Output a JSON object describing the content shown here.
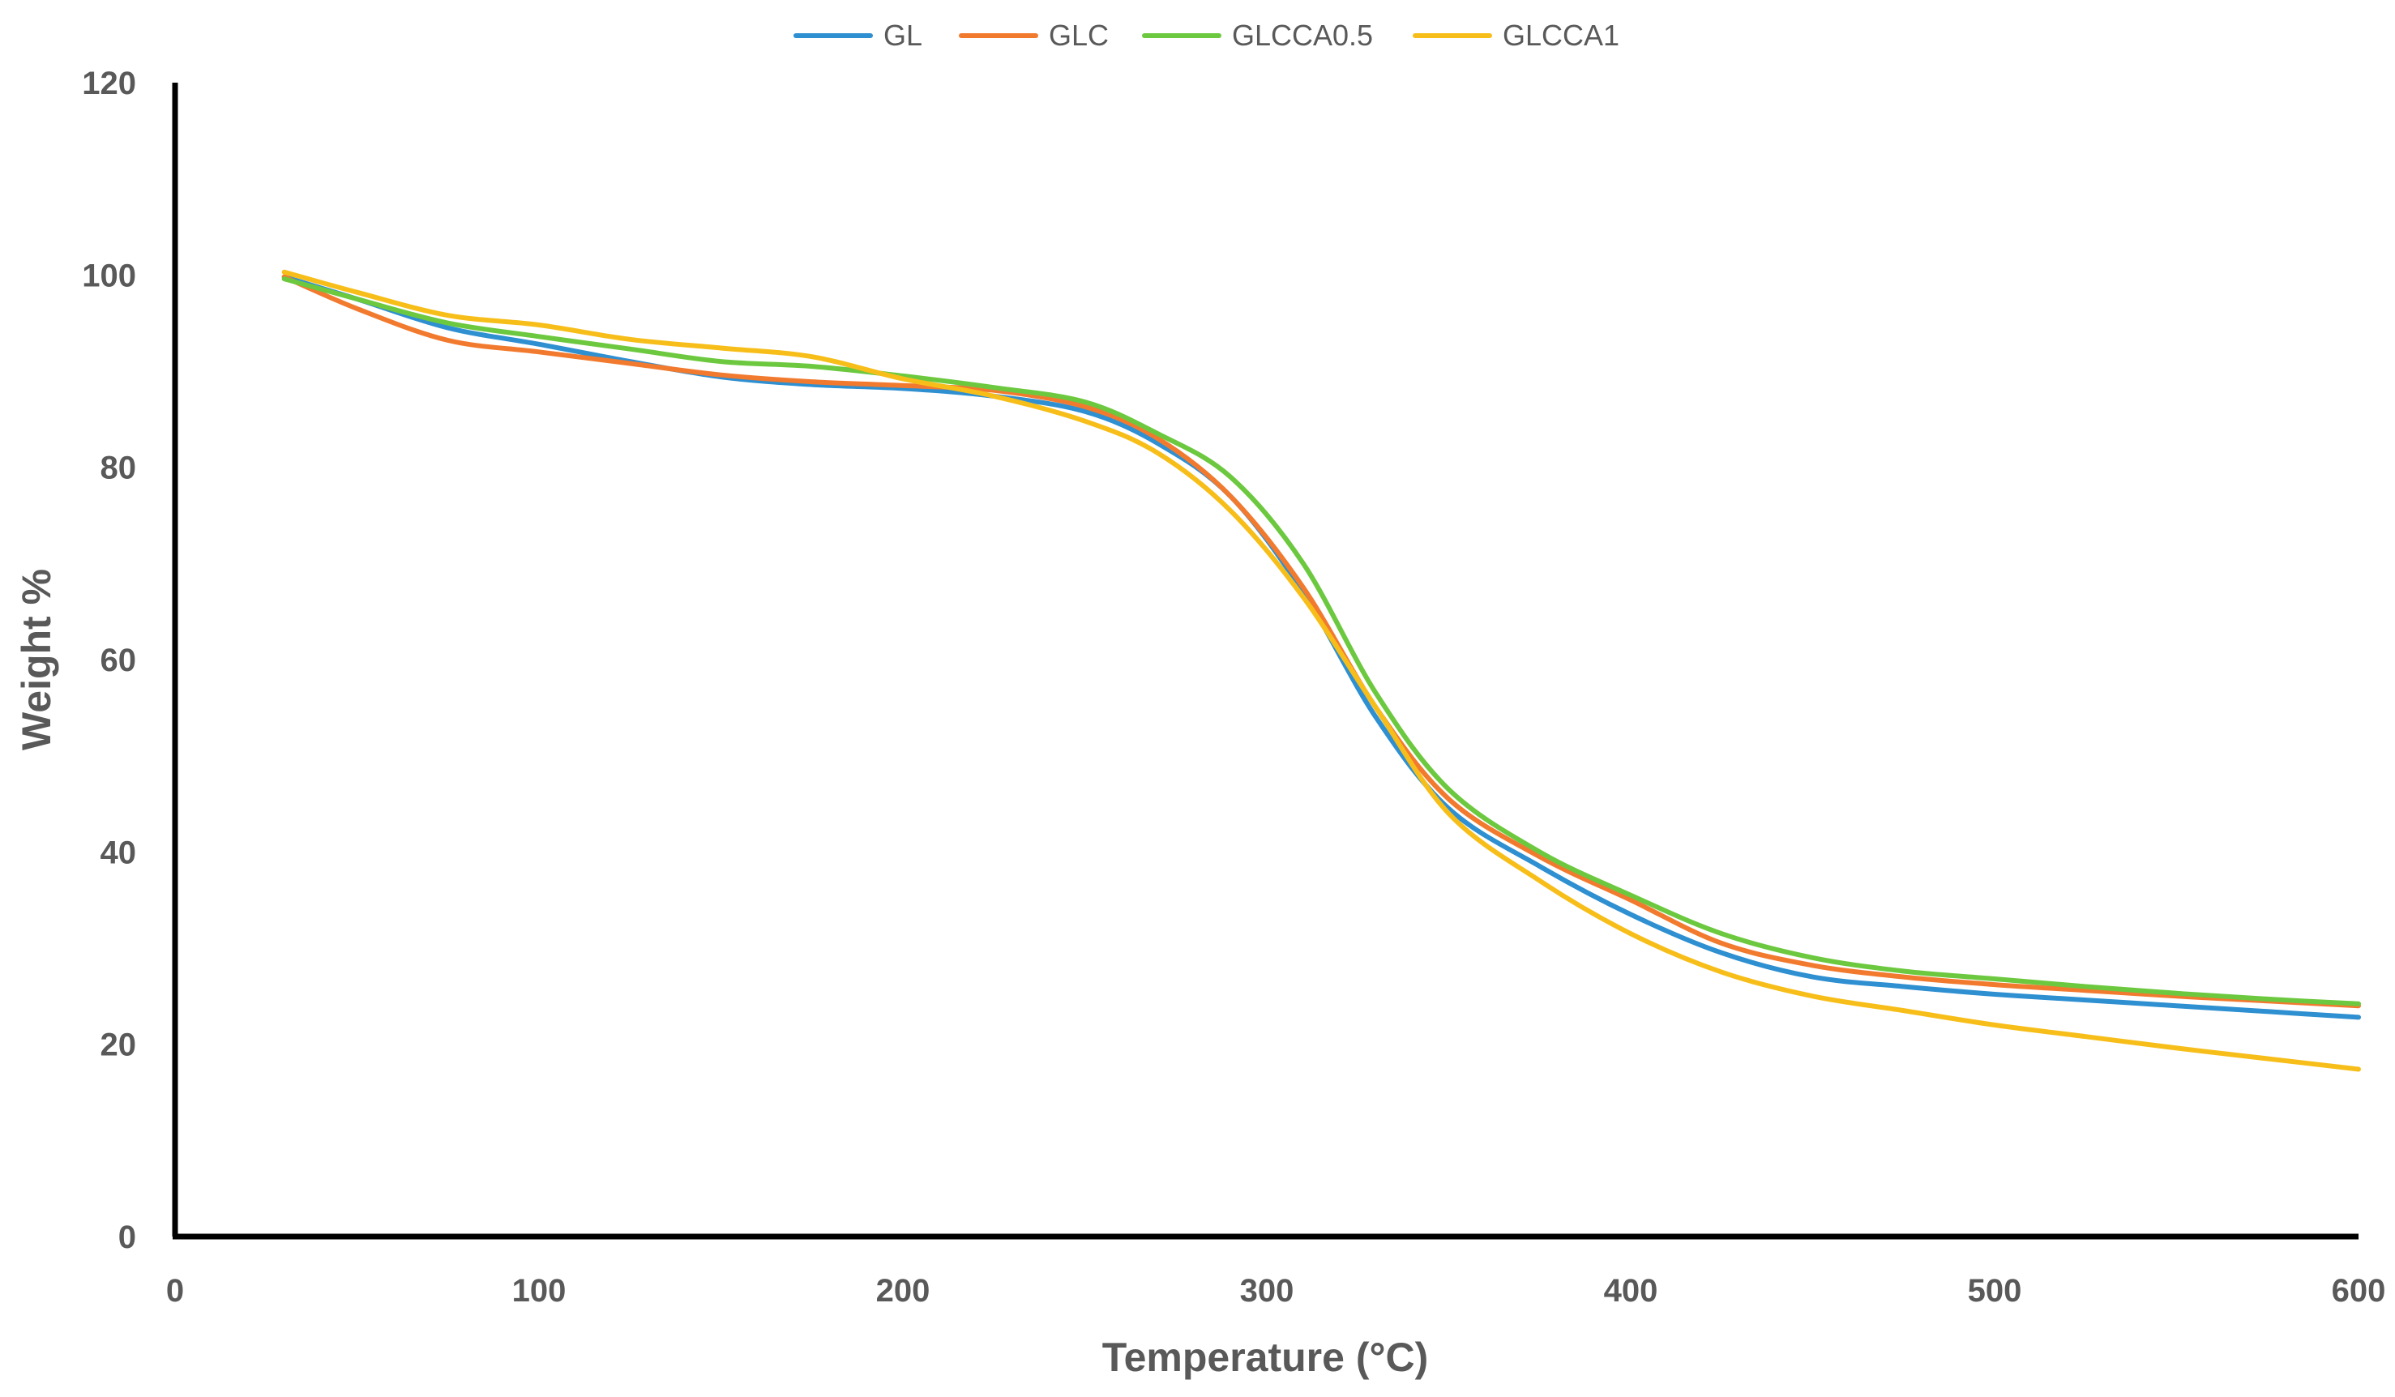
{
  "chart_data": {
    "type": "line",
    "title": "",
    "xlabel": "Temperature (°C)",
    "ylabel": "Weight %",
    "xlim": [
      0,
      600
    ],
    "ylim": [
      0,
      120
    ],
    "xticks": [
      "0",
      "100",
      "200",
      "300",
      "400",
      "500",
      "600"
    ],
    "yticks": [
      "0",
      "20",
      "40",
      "60",
      "80",
      "100",
      "120"
    ],
    "grid": false,
    "legend_position": "top-center",
    "series": [
      {
        "name": "GL",
        "color": "#2E8FD1",
        "x": [
          30,
          50,
          75,
          100,
          125,
          150,
          175,
          200,
          225,
          250,
          270,
          290,
          310,
          330,
          350,
          375,
          400,
          425,
          450,
          475,
          500,
          525,
          550,
          575,
          600
        ],
        "y": [
          99.8,
          97.5,
          94.5,
          92.8,
          91.0,
          89.4,
          88.6,
          88.2,
          87.4,
          85.8,
          82.5,
          77.0,
          67.0,
          54.0,
          44.5,
          38.5,
          33.5,
          29.5,
          27.0,
          26.0,
          25.2,
          24.6,
          24.0,
          23.4,
          22.8
        ]
      },
      {
        "name": "GLC",
        "color": "#F27A2E",
        "x": [
          30,
          50,
          75,
          100,
          125,
          150,
          175,
          200,
          225,
          250,
          270,
          290,
          310,
          330,
          350,
          375,
          400,
          425,
          450,
          475,
          500,
          525,
          550,
          575,
          600
        ],
        "y": [
          99.8,
          96.5,
          93.2,
          92.0,
          90.8,
          89.6,
          88.9,
          88.5,
          88.0,
          86.3,
          83.0,
          77.0,
          67.5,
          55.0,
          45.5,
          39.5,
          35.0,
          30.5,
          28.2,
          27.0,
          26.2,
          25.6,
          25.0,
          24.5,
          24.0
        ]
      },
      {
        "name": "GLCCA0.5",
        "color": "#6CC93F",
        "x": [
          30,
          50,
          75,
          100,
          125,
          150,
          175,
          200,
          225,
          250,
          270,
          290,
          310,
          330,
          350,
          375,
          400,
          425,
          450,
          475,
          500,
          525,
          550,
          575,
          600
        ],
        "y": [
          99.6,
          97.5,
          95.0,
          93.6,
          92.3,
          91.0,
          90.5,
          89.5,
          88.3,
          86.8,
          83.5,
          79.0,
          70.0,
          56.5,
          46.5,
          40.0,
          35.5,
          31.5,
          29.0,
          27.6,
          26.8,
          26.0,
          25.3,
          24.7,
          24.2
        ]
      },
      {
        "name": "GLCCA1",
        "color": "#F7BE1A",
        "x": [
          30,
          50,
          75,
          100,
          125,
          150,
          175,
          200,
          225,
          250,
          270,
          290,
          310,
          330,
          350,
          375,
          400,
          425,
          450,
          475,
          500,
          525,
          550,
          575,
          600
        ],
        "y": [
          100.3,
          98.2,
          95.8,
          94.8,
          93.3,
          92.4,
          91.5,
          89.2,
          87.4,
          84.8,
          81.5,
          75.5,
          66.5,
          55.0,
          44.0,
          37.0,
          31.5,
          27.5,
          25.0,
          23.5,
          22.0,
          20.8,
          19.6,
          18.5,
          17.4
        ]
      }
    ]
  }
}
